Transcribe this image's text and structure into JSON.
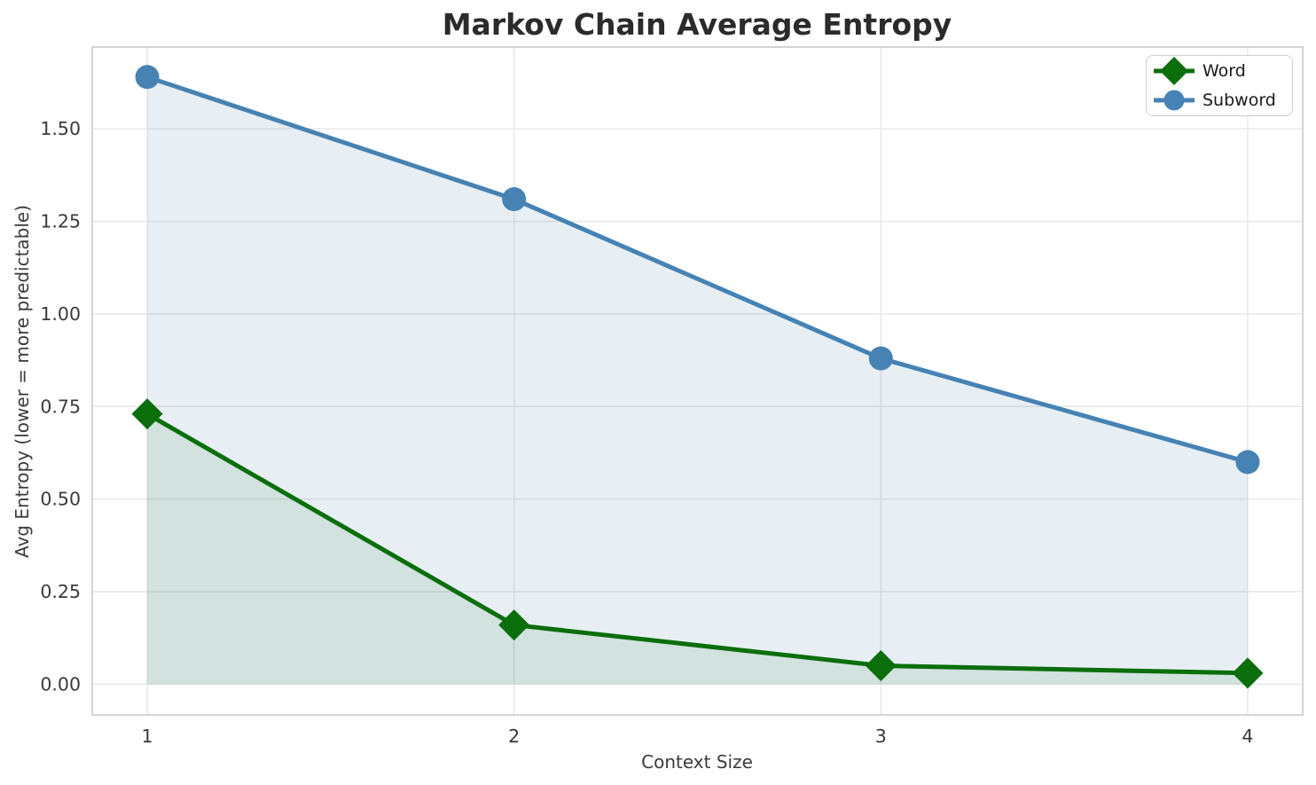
{
  "chart_data": {
    "type": "line",
    "title": "Markov Chain Average Entropy",
    "xlabel": "Context Size",
    "ylabel": "Avg Entropy (lower = more predictable)",
    "x": [
      1,
      2,
      3,
      4
    ],
    "xtick_labels": [
      "1",
      "2",
      "3",
      "4"
    ],
    "yticks": [
      0.0,
      0.25,
      0.5,
      0.75,
      1.0,
      1.25,
      1.5
    ],
    "ytick_labels": [
      "0.00",
      "0.25",
      "0.50",
      "0.75",
      "1.00",
      "1.25",
      "1.50"
    ],
    "xlim": [
      0.85,
      4.15
    ],
    "ylim": [
      -0.083,
      1.721
    ],
    "grid": true,
    "area_fill": true,
    "fill_baseline": 0,
    "legend_position": "upper right",
    "series": [
      {
        "name": "Word",
        "marker": "diamond",
        "color": "#0a6e0a",
        "fill_opacity": 0.1,
        "values": [
          0.73,
          0.16,
          0.05,
          0.03
        ]
      },
      {
        "name": "Subword",
        "marker": "circle",
        "color": "#4682b4",
        "fill_opacity": 0.13,
        "values": [
          1.64,
          1.31,
          0.88,
          0.6
        ]
      }
    ]
  },
  "colors": {
    "background": "#ffffff",
    "grid": "#e8e8e8",
    "spine": "#d4d4d4",
    "tick_text": "#3a3a3a",
    "title_text": "#2b2b2b",
    "legend_text": "#1a1a1a"
  }
}
